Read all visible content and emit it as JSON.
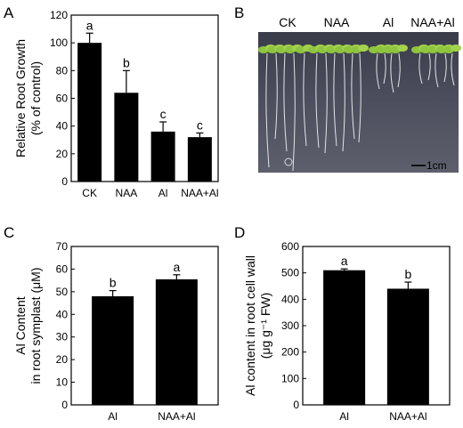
{
  "chart_data": [
    {
      "panel": "A",
      "type": "bar",
      "ylabel_line1": "Relative Root Growth",
      "ylabel_line2": "(% of control)",
      "categories": [
        "CK",
        "NAA",
        "Al",
        "NAA+Al"
      ],
      "values": [
        100,
        64,
        36,
        32
      ],
      "errors": [
        7,
        16,
        7,
        3
      ],
      "significance": [
        "a",
        "b",
        "c",
        "c"
      ],
      "ylim": [
        0,
        120
      ],
      "yticks": [
        0,
        20,
        40,
        60,
        80,
        100,
        120
      ]
    },
    {
      "panel": "C",
      "type": "bar",
      "ylabel_line1": "Al Content",
      "ylabel_line2": "in root symplast (μM)",
      "categories": [
        "Al",
        "NAA+Al"
      ],
      "values": [
        48,
        55.5
      ],
      "errors": [
        2.5,
        2.0
      ],
      "significance": [
        "b",
        "a"
      ],
      "ylim": [
        0,
        70
      ],
      "yticks": [
        0,
        10,
        20,
        30,
        40,
        50,
        60,
        70
      ]
    },
    {
      "panel": "D",
      "type": "bar",
      "ylabel_line1": "Al content in root cell wall",
      "ylabel_line2": "(μg g⁻¹ FW)",
      "categories": [
        "Al",
        "NAA+Al"
      ],
      "values": [
        510,
        440
      ],
      "errors": [
        5,
        25
      ],
      "significance": [
        "a",
        "b"
      ],
      "ylim": [
        0,
        600
      ],
      "yticks": [
        0,
        100,
        200,
        300,
        400,
        500,
        600
      ]
    }
  ],
  "photo": {
    "panel": "B",
    "labels": [
      "CK",
      "NAA",
      "Al",
      "NAA+Al"
    ],
    "scale_bar": "1cm"
  }
}
